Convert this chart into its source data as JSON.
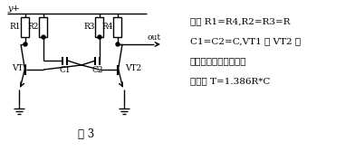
{
  "annotation_lines": [
    "如果 R1=R4,R2=R3=R",
    "C1=C2=C,VT1 和 VT2 相",
    "同电路对称则方波脑冲",
    "周期为 T=1.386R*C"
  ],
  "vplus_label": "y+",
  "out_label": "out",
  "vt1_label": "VT1",
  "vt2_label": "VT2",
  "r1_label": "R1",
  "r2_label": "R2",
  "r3_label": "R3",
  "r4_label": "R4",
  "c1_label": "C1",
  "c2_label": "C2",
  "title": "图 3",
  "bg_color": "#ffffff",
  "line_color": "#000000",
  "font_size": 7.0,
  "ann_font_size": 7.5,
  "title_font_size": 8.5
}
